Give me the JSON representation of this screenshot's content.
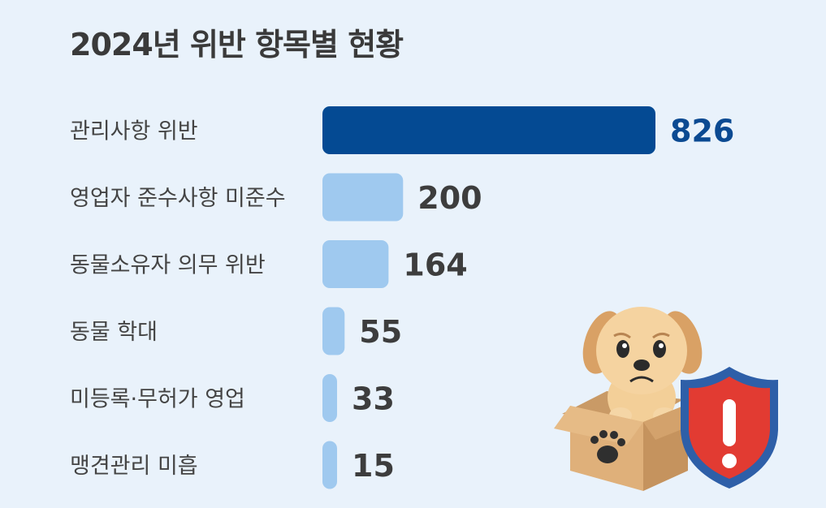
{
  "chart_data": {
    "type": "bar",
    "orientation": "horizontal",
    "title": "2024년 위반 항목별 현황",
    "categories": [
      "관리사항 위반",
      "영업자 준수사항 미준수",
      "동물소유자 의무 위반",
      "동물 학대",
      "미등록·무허가 영업",
      "맹견관리 미흡"
    ],
    "values": [
      826,
      200,
      164,
      55,
      33,
      15
    ],
    "xlim": [
      0,
      826
    ],
    "grid": false,
    "legend": "none",
    "colors": {
      "highlight": "#044a93",
      "bar": "#9fc9ef",
      "highlight_label": "#0b4a92",
      "label": "#3d3d3d"
    }
  },
  "illustration": {
    "icons": [
      "sad-puppy-in-box-icon",
      "shield-exclamation-icon"
    ]
  }
}
